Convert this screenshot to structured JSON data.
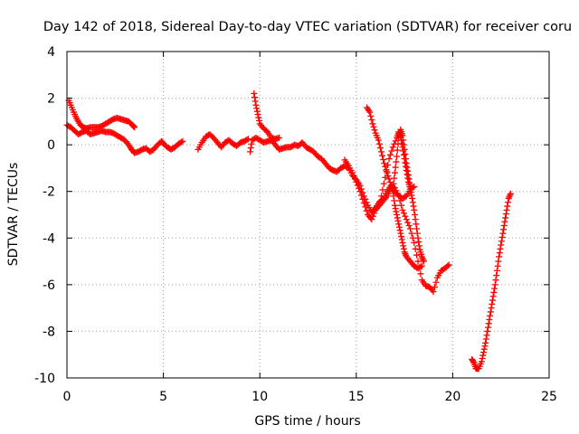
{
  "chart_data": {
    "type": "scatter",
    "title": "Day 142 of 2018, Sidereal Day-to-day VTEC variation (SDTVAR) for receiver coru",
    "xlabel": "GPS time / hours",
    "ylabel": "SDTVAR / TECUs",
    "xlim": [
      0,
      25
    ],
    "ylim": [
      -10,
      4
    ],
    "xticks": [
      "0",
      "5",
      "10",
      "15",
      "20",
      "25"
    ],
    "yticks": [
      "-10",
      "-8",
      "-6",
      "-4",
      "-2",
      "0",
      "2",
      "4"
    ],
    "grid": true,
    "marker": "plus",
    "series": [
      {
        "color": "#ff0000",
        "segments": [
          [
            [
              0.0,
              0.85
            ],
            [
              0.2,
              0.75
            ],
            [
              0.4,
              0.6
            ],
            [
              0.6,
              0.45
            ],
            [
              0.8,
              0.55
            ],
            [
              1.0,
              0.6
            ],
            [
              1.2,
              0.45
            ],
            [
              1.4,
              0.5
            ],
            [
              1.6,
              0.55
            ],
            [
              1.8,
              0.6
            ],
            [
              2.0,
              0.55
            ],
            [
              2.2,
              0.55
            ],
            [
              2.4,
              0.5
            ],
            [
              2.6,
              0.4
            ],
            [
              2.8,
              0.3
            ],
            [
              3.0,
              0.2
            ],
            [
              3.2,
              0.0
            ],
            [
              3.35,
              -0.2
            ],
            [
              3.5,
              -0.35
            ],
            [
              3.7,
              -0.3
            ],
            [
              3.9,
              -0.2
            ],
            [
              4.1,
              -0.15
            ],
            [
              4.3,
              -0.3
            ],
            [
              4.5,
              -0.2
            ],
            [
              4.7,
              0.0
            ],
            [
              4.9,
              0.15
            ],
            [
              5.0,
              0.05
            ],
            [
              5.2,
              -0.1
            ],
            [
              5.4,
              -0.2
            ],
            [
              5.6,
              -0.1
            ],
            [
              5.8,
              0.05
            ],
            [
              6.0,
              0.15
            ]
          ],
          [
            [
              0.1,
              1.9
            ],
            [
              0.25,
              1.6
            ],
            [
              0.4,
              1.3
            ],
            [
              0.55,
              1.05
            ],
            [
              0.7,
              0.85
            ],
            [
              0.85,
              0.75
            ],
            [
              1.0,
              0.7
            ],
            [
              1.2,
              0.75
            ],
            [
              1.4,
              0.75
            ],
            [
              1.6,
              0.75
            ],
            [
              1.8,
              0.8
            ],
            [
              2.0,
              0.9
            ],
            [
              2.2,
              1.0
            ],
            [
              2.4,
              1.1
            ],
            [
              2.6,
              1.15
            ],
            [
              2.8,
              1.1
            ],
            [
              3.0,
              1.05
            ],
            [
              3.2,
              1.0
            ],
            [
              3.4,
              0.85
            ],
            [
              3.5,
              0.75
            ]
          ],
          [
            [
              6.8,
              -0.2
            ],
            [
              7.0,
              0.1
            ],
            [
              7.2,
              0.35
            ],
            [
              7.4,
              0.45
            ],
            [
              7.6,
              0.3
            ],
            [
              7.8,
              0.1
            ],
            [
              8.0,
              -0.1
            ],
            [
              8.2,
              0.1
            ],
            [
              8.4,
              0.2
            ],
            [
              8.6,
              0.05
            ],
            [
              8.8,
              -0.05
            ],
            [
              9.0,
              0.1
            ],
            [
              9.2,
              0.15
            ],
            [
              9.4,
              0.25
            ]
          ],
          [
            [
              9.5,
              -0.3
            ],
            [
              9.6,
              0.2
            ],
            [
              9.8,
              0.3
            ],
            [
              10.0,
              0.2
            ],
            [
              10.2,
              0.1
            ],
            [
              10.4,
              0.15
            ],
            [
              10.6,
              0.2
            ],
            [
              10.8,
              0.0
            ],
            [
              11.0,
              -0.2
            ],
            [
              11.2,
              -0.15
            ],
            [
              11.4,
              -0.1
            ],
            [
              11.6,
              -0.1
            ],
            [
              11.8,
              0.0
            ],
            [
              12.0,
              -0.05
            ],
            [
              12.2,
              0.1
            ],
            [
              12.4,
              -0.1
            ],
            [
              12.6,
              -0.2
            ],
            [
              12.8,
              -0.3
            ],
            [
              13.0,
              -0.5
            ],
            [
              13.2,
              -0.6
            ],
            [
              13.4,
              -0.8
            ],
            [
              13.6,
              -1.0
            ],
            [
              13.8,
              -1.1
            ],
            [
              14.0,
              -1.15
            ],
            [
              14.2,
              -1.0
            ],
            [
              14.4,
              -0.9
            ],
            [
              14.6,
              -1.0
            ],
            [
              14.8,
              -1.3
            ],
            [
              15.0,
              -1.5
            ],
            [
              15.2,
              -1.75
            ],
            [
              15.4,
              -2.2
            ],
            [
              15.6,
              -2.6
            ],
            [
              15.8,
              -2.9
            ],
            [
              16.0,
              -2.7
            ],
            [
              16.2,
              -2.45
            ],
            [
              16.4,
              -2.3
            ],
            [
              16.6,
              -2.0
            ],
            [
              16.8,
              -1.75
            ],
            [
              17.0,
              -1.85
            ],
            [
              17.2,
              -2.2
            ],
            [
              17.4,
              -2.8
            ],
            [
              17.6,
              -3.2
            ],
            [
              17.8,
              -3.6
            ],
            [
              18.0,
              -4.2
            ],
            [
              18.2,
              -5.0
            ],
            [
              18.4,
              -5.8
            ],
            [
              18.6,
              -6.05
            ],
            [
              18.8,
              -6.1
            ],
            [
              19.0,
              -6.3
            ],
            [
              19.2,
              -5.7
            ],
            [
              19.4,
              -5.4
            ],
            [
              19.6,
              -5.3
            ],
            [
              19.8,
              -5.15
            ]
          ],
          [
            [
              9.7,
              2.2
            ],
            [
              9.8,
              1.7
            ],
            [
              9.9,
              1.3
            ],
            [
              10.0,
              0.9
            ],
            [
              10.2,
              0.7
            ],
            [
              10.4,
              0.55
            ],
            [
              10.6,
              0.3
            ],
            [
              10.8,
              0.25
            ],
            [
              11.0,
              0.3
            ]
          ],
          [
            [
              14.4,
              -0.65
            ],
            [
              14.6,
              -0.9
            ],
            [
              14.8,
              -1.2
            ],
            [
              15.0,
              -1.6
            ],
            [
              15.2,
              -2.0
            ],
            [
              15.4,
              -2.5
            ],
            [
              15.6,
              -3.0
            ],
            [
              15.8,
              -3.2
            ],
            [
              16.0,
              -2.8
            ],
            [
              16.2,
              -2.6
            ],
            [
              16.4,
              -2.4
            ],
            [
              16.6,
              -2.2
            ],
            [
              16.8,
              -1.9
            ],
            [
              17.0,
              -2.0
            ],
            [
              17.2,
              -2.2
            ],
            [
              17.4,
              -2.3
            ],
            [
              17.6,
              -2.2
            ],
            [
              17.8,
              -1.9
            ],
            [
              18.0,
              -1.8
            ]
          ],
          [
            [
              15.55,
              1.6
            ],
            [
              15.7,
              1.4
            ],
            [
              15.85,
              0.9
            ],
            [
              16.0,
              0.5
            ],
            [
              16.15,
              0.2
            ],
            [
              16.3,
              -0.3
            ],
            [
              16.45,
              -0.8
            ],
            [
              16.6,
              -1.2
            ],
            [
              16.75,
              -1.6
            ],
            [
              16.9,
              -2.0
            ],
            [
              17.0,
              -2.6
            ],
            [
              17.1,
              -3.0
            ],
            [
              17.2,
              -3.4
            ],
            [
              17.3,
              -3.8
            ],
            [
              17.4,
              -4.2
            ],
            [
              17.5,
              -4.6
            ],
            [
              17.6,
              -4.8
            ],
            [
              17.8,
              -5.0
            ],
            [
              18.0,
              -5.2
            ],
            [
              18.2,
              -5.3
            ],
            [
              18.4,
              -5.2
            ]
          ],
          [
            [
              16.3,
              -2.2
            ],
            [
              16.5,
              -1.4
            ],
            [
              16.7,
              -0.6
            ],
            [
              16.9,
              -0.1
            ],
            [
              17.1,
              0.3
            ],
            [
              17.2,
              0.55
            ],
            [
              17.3,
              0.35
            ],
            [
              17.4,
              -0.1
            ],
            [
              17.5,
              -0.6
            ],
            [
              17.6,
              -1.1
            ],
            [
              17.7,
              -1.6
            ],
            [
              17.8,
              -1.9
            ],
            [
              17.9,
              -2.3
            ],
            [
              18.0,
              -2.8
            ],
            [
              18.1,
              -3.4
            ],
            [
              18.2,
              -4.0
            ],
            [
              18.3,
              -4.5
            ],
            [
              18.4,
              -4.8
            ],
            [
              18.5,
              -5.0
            ]
          ],
          [
            [
              16.9,
              -1.9
            ],
            [
              17.0,
              -1.2
            ],
            [
              17.1,
              -0.5
            ],
            [
              17.2,
              0.3
            ],
            [
              17.3,
              0.65
            ],
            [
              17.4,
              0.4
            ],
            [
              17.5,
              -0.2
            ],
            [
              17.6,
              -0.8
            ],
            [
              17.7,
              -1.3
            ],
            [
              17.8,
              -1.8
            ]
          ],
          [
            [
              21.0,
              -9.2
            ],
            [
              21.1,
              -9.35
            ],
            [
              21.2,
              -9.6
            ],
            [
              21.35,
              -9.6
            ],
            [
              21.5,
              -9.3
            ],
            [
              21.6,
              -8.9
            ],
            [
              21.7,
              -8.5
            ],
            [
              21.8,
              -8.0
            ],
            [
              21.9,
              -7.5
            ],
            [
              22.0,
              -7.0
            ],
            [
              22.1,
              -6.5
            ],
            [
              22.2,
              -6.0
            ],
            [
              22.3,
              -5.4
            ],
            [
              22.4,
              -4.8
            ],
            [
              22.5,
              -4.3
            ],
            [
              22.6,
              -3.8
            ],
            [
              22.7,
              -3.3
            ],
            [
              22.8,
              -2.8
            ],
            [
              22.9,
              -2.3
            ],
            [
              23.0,
              -2.1
            ]
          ]
        ]
      }
    ]
  }
}
